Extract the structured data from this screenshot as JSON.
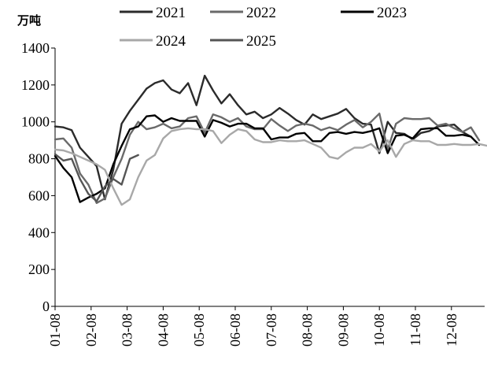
{
  "chart_data": {
    "type": "line",
    "title": "",
    "ylabel": "万吨",
    "xlabel": "",
    "ylim": [
      0,
      1400
    ],
    "yticks": [
      0,
      200,
      400,
      600,
      800,
      1000,
      1200,
      1400
    ],
    "xticks": [
      "01-08",
      "02-08",
      "03-08",
      "04-08",
      "05-08",
      "06-08",
      "07-08",
      "08-08",
      "09-08",
      "10-08",
      "11-08",
      "12-08"
    ],
    "x_unit": "weeks (52 weekly points per year)",
    "grid": false,
    "legend_position": "top",
    "series": [
      {
        "name": "2021",
        "color": "#2b2b2b",
        "values": [
          975,
          970,
          955,
          860,
          810,
          760,
          580,
          740,
          990,
          1060,
          1120,
          1180,
          1210,
          1225,
          1175,
          1155,
          1210,
          1090,
          1250,
          1170,
          1100,
          1150,
          1090,
          1040,
          1055,
          1020,
          1040,
          1075,
          1045,
          1010,
          985,
          1040,
          1015,
          1030,
          1045,
          1070,
          1020,
          990,
          985,
          830,
          1000,
          940,
          935,
          905,
          940,
          950,
          975,
          980,
          985,
          945,
          920
        ]
      },
      {
        "name": "2022",
        "color": "#6a6a6a",
        "values": [
          905,
          910,
          860,
          720,
          660,
          560,
          585,
          700,
          800,
          930,
          1000,
          960,
          970,
          990,
          965,
          975,
          1020,
          1030,
          940,
          1040,
          1025,
          1000,
          1020,
          975,
          960,
          960,
          1015,
          980,
          950,
          980,
          990,
          980,
          955,
          970,
          955,
          985,
          1010,
          970,
          1000,
          1045,
          850,
          990,
          1020,
          1015,
          1015,
          1020,
          980,
          990,
          965,
          945,
          970,
          900
        ]
      },
      {
        "name": "2023",
        "color": "#000000",
        "values": [
          815,
          750,
          700,
          565,
          590,
          610,
          640,
          770,
          870,
          960,
          975,
          1030,
          1035,
          1000,
          1020,
          1005,
          1005,
          1005,
          920,
          1010,
          995,
          975,
          990,
          990,
          965,
          965,
          905,
          915,
          915,
          935,
          940,
          895,
          895,
          940,
          945,
          935,
          945,
          940,
          950,
          965,
          830,
          925,
          930,
          910,
          960,
          965,
          965,
          925,
          925,
          930,
          920,
          875
        ]
      },
      {
        "name": "2024",
        "color": "#a8a8a8",
        "values": [
          850,
          845,
          830,
          810,
          790,
          770,
          740,
          640,
          550,
          580,
          700,
          790,
          820,
          910,
          950,
          960,
          965,
          960,
          960,
          950,
          885,
          930,
          960,
          950,
          905,
          890,
          890,
          900,
          895,
          895,
          900,
          880,
          860,
          810,
          800,
          835,
          860,
          860,
          880,
          840,
          900,
          810,
          880,
          900,
          895,
          895,
          875,
          875,
          880,
          875,
          875,
          880,
          870
        ]
      },
      {
        "name": "2025",
        "color": "#555555",
        "values": [
          825,
          790,
          800,
          690,
          610,
          570,
          650,
          690,
          660,
          800,
          820
        ]
      }
    ]
  }
}
